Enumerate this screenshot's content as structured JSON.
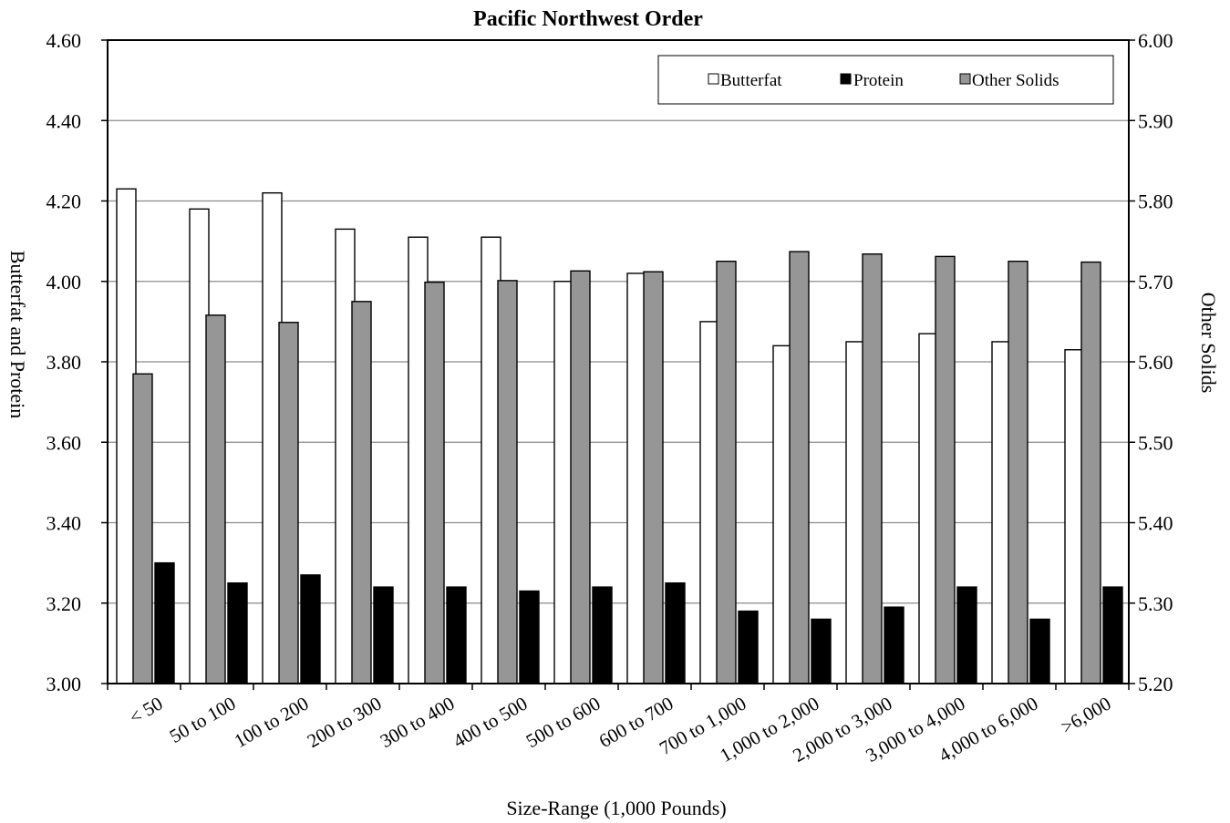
{
  "chart_data": {
    "type": "bar",
    "title": "Pacific Northwest Order",
    "xlabel": "Size-Range (1,000 Pounds)",
    "ylabel": "Butterfat and Protein",
    "y2label": "Other Solids",
    "ylim": [
      3.0,
      4.6
    ],
    "y2lim": [
      5.2,
      6.0
    ],
    "yticks": [
      "3.00",
      "3.20",
      "3.40",
      "3.60",
      "3.80",
      "4.00",
      "4.20",
      "4.40",
      "4.60"
    ],
    "y2ticks": [
      "5.20",
      "5.30",
      "5.40",
      "5.50",
      "5.60",
      "5.70",
      "5.80",
      "5.90",
      "6.00"
    ],
    "grid": true,
    "legend_position": "top-right",
    "categories": [
      "< 50",
      "50 to 100",
      "100 to 200",
      "200 to 300",
      "300 to 400",
      "400 to 500",
      "500 to 600",
      "600 to 700",
      "700 to 1,000",
      "1,000 to 2,000",
      "2,000 to 3,000",
      "3,000 to 4,000",
      "4,000 to 6,000",
      ">6,000"
    ],
    "series": [
      {
        "name": "Butterfat",
        "axis": "left",
        "color": "#ffffff",
        "values": [
          4.23,
          4.18,
          4.22,
          4.13,
          4.11,
          4.11,
          4.0,
          4.02,
          3.9,
          3.84,
          3.85,
          3.87,
          3.85,
          3.83
        ]
      },
      {
        "name": "Protein",
        "axis": "left",
        "color": "#000000",
        "values": [
          3.3,
          3.25,
          3.27,
          3.24,
          3.24,
          3.23,
          3.24,
          3.25,
          3.18,
          3.16,
          3.19,
          3.24,
          3.16,
          3.24
        ]
      },
      {
        "name": "Other Solids",
        "axis": "right",
        "color": "#969696",
        "values": [
          5.585,
          5.658,
          5.649,
          5.675,
          5.699,
          5.701,
          5.713,
          5.712,
          5.725,
          5.737,
          5.734,
          5.731,
          5.725,
          5.724
        ]
      }
    ]
  }
}
